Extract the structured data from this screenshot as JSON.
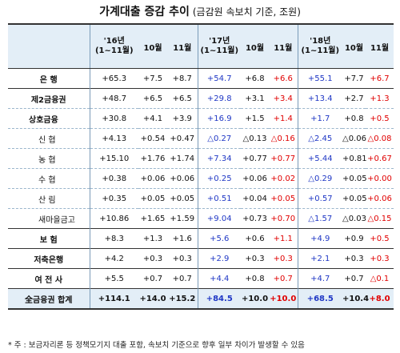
{
  "title": {
    "main": "가계대출 증감 추이",
    "sub": "(금감원 속보치 기준, 조원)"
  },
  "header": {
    "years": [
      {
        "year": "'16년",
        "range": "(1~11월)"
      },
      {
        "year": "'17년",
        "range": "(1~11월)"
      },
      {
        "year": "'18년",
        "range": "(1~11월)"
      }
    ],
    "months": [
      "10월",
      "11월"
    ]
  },
  "rows": [
    {
      "label": "은 행",
      "values": [
        "+65.3",
        "+7.5",
        "+8.7",
        "+54.7",
        "+6.8",
        "+6.6",
        "+55.1",
        "+7.7",
        "+6.7"
      ]
    },
    {
      "label": "제2금융권",
      "values": [
        "+48.7",
        "+6.5",
        "+6.5",
        "+29.8",
        "+3.1",
        "+3.4",
        "+13.4",
        "+2.7",
        "+1.3"
      ]
    },
    {
      "label": "상호금융",
      "values": [
        "+30.8",
        "+4.1",
        "+3.9",
        "+16.9",
        "+1.5",
        "+1.4",
        "+1.7",
        "+0.8",
        "+0.5"
      ]
    },
    {
      "label": "신 협",
      "values": [
        "+4.13",
        "+0.54",
        "+0.47",
        "△0.27",
        "△0.13",
        "△0.16",
        "△2.45",
        "△0.06",
        "△0.08"
      ]
    },
    {
      "label": "농 협",
      "values": [
        "+15.10",
        "+1.76",
        "+1.74",
        "+7.34",
        "+0.77",
        "+0.77",
        "+5.44",
        "+0.81",
        "+0.67"
      ]
    },
    {
      "label": "수 협",
      "values": [
        "+0.38",
        "+0.06",
        "+0.06",
        "+0.25",
        "+0.06",
        "+0.02",
        "△0.29",
        "+0.05",
        "+0.00"
      ]
    },
    {
      "label": "산 림",
      "values": [
        "+0.35",
        "+0.05",
        "+0.05",
        "+0.51",
        "+0.04",
        "+0.05",
        "+0.57",
        "+0.05",
        "+0.06"
      ]
    },
    {
      "label": "새마을금고",
      "values": [
        "+10.86",
        "+1.65",
        "+1.59",
        "+9.04",
        "+0.73",
        "+0.70",
        "△1.57",
        "△0.03",
        "△0.15"
      ]
    },
    {
      "label": "보 험",
      "values": [
        "+8.3",
        "+1.3",
        "+1.6",
        "+5.6",
        "+0.6",
        "+1.1",
        "+4.9",
        "+0.9",
        "+0.5"
      ]
    },
    {
      "label": "저축은행",
      "values": [
        "+4.2",
        "+0.3",
        "+0.3",
        "+2.9",
        "+0.3",
        "+0.3",
        "+2.1",
        "+0.3",
        "+0.3"
      ]
    },
    {
      "label": "여 전 사",
      "values": [
        "+5.5",
        "+0.7",
        "+0.7",
        "+4.4",
        "+0.8",
        "+0.7",
        "+4.7",
        "+0.7",
        "△0.1"
      ]
    }
  ],
  "total": {
    "label": "全금융권 합계",
    "values": [
      "+114.1",
      "+14.0",
      "+15.2",
      "+84.5",
      "+10.0",
      "+10.0",
      "+68.5",
      "+10.4",
      "+8.0"
    ]
  },
  "note": "* 주 : 보금자리론 등 정책모기지 대출 포함, 속보치 기준으로 향후 일부 차이가 발생할 수 있음",
  "colors": {
    "header_bg": "#e3eef7",
    "blue_text": "#1f37c5",
    "red_text": "#e00000"
  }
}
